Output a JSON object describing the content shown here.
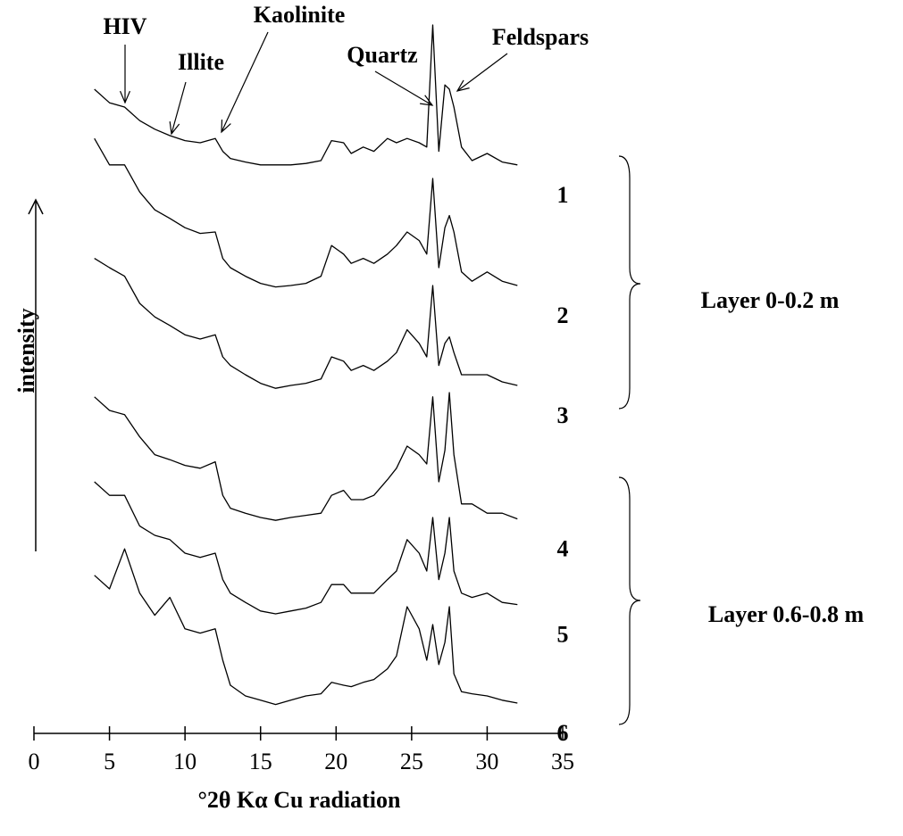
{
  "chart_data": {
    "type": "line",
    "x_label": "°2θ Kα Cu radiation",
    "y_label": "intensity",
    "xlim": [
      0,
      35
    ],
    "xticks": [
      0,
      5,
      10,
      15,
      20,
      25,
      30,
      35
    ],
    "ylim": [
      0,
      100
    ],
    "color": "#000000",
    "peak_labels": [
      "HIV",
      "Illite",
      "Kaolinite",
      "Quartz",
      "Feldspars"
    ],
    "groups": [
      "Layer 0-0.2 m",
      "Layer 0.6-0.8 m"
    ],
    "x": [
      4,
      5,
      6,
      7,
      8,
      9,
      10,
      11,
      12,
      12.5,
      13,
      14,
      15,
      16,
      17,
      18,
      19,
      19.7,
      20.5,
      21,
      21.8,
      22.5,
      23.4,
      24,
      24.7,
      25.5,
      26,
      26.4,
      26.8,
      27.2,
      27.5,
      27.8,
      28.3,
      29,
      30,
      31,
      32
    ],
    "series": [
      {
        "name": "1",
        "values": [
          87.5,
          85.6,
          85,
          83.1,
          81.9,
          81,
          80.3,
          80,
          80.6,
          78.8,
          77.8,
          77.3,
          76.9,
          76.9,
          76.9,
          77.1,
          77.5,
          80.3,
          80,
          78.5,
          79.4,
          78.8,
          80.6,
          80,
          80.6,
          80,
          79.4,
          96.5,
          78.8,
          88.1,
          87.5,
          85,
          79.4,
          77.5,
          78.5,
          77.3,
          76.9
        ]
      },
      {
        "name": "2",
        "values": [
          80.6,
          76.9,
          76.9,
          73.1,
          70.6,
          69.4,
          68.1,
          67.3,
          67.5,
          63.8,
          62.5,
          61.3,
          60.3,
          59.8,
          60,
          60.3,
          61.3,
          65.6,
          64.4,
          63.1,
          63.8,
          63.1,
          64.4,
          65.6,
          67.5,
          66.3,
          64.4,
          75,
          62.5,
          68.1,
          69.8,
          67.5,
          61.9,
          60.6,
          61.9,
          60.6,
          60
        ]
      },
      {
        "name": "3",
        "values": [
          63.8,
          62.5,
          61.3,
          57.5,
          55.6,
          54.4,
          53.1,
          52.5,
          53.1,
          50,
          48.8,
          47.5,
          46.3,
          45.6,
          46,
          46.3,
          46.9,
          50,
          49.4,
          48.1,
          48.8,
          48.1,
          49.4,
          50.6,
          53.8,
          51.9,
          50,
          60,
          48.8,
          51.9,
          52.8,
          50.6,
          47.5,
          47.5,
          47.5,
          46.5,
          46
        ]
      },
      {
        "name": "4",
        "values": [
          44.4,
          42.5,
          41.9,
          38.8,
          36.3,
          35.6,
          34.8,
          34.4,
          35.3,
          30.6,
          28.8,
          28.1,
          27.5,
          27.1,
          27.5,
          27.8,
          28.1,
          30.6,
          31.3,
          30,
          30,
          30.6,
          32.8,
          34.4,
          37.5,
          36.3,
          35,
          44.4,
          32.5,
          36.9,
          45,
          36.3,
          29.4,
          29.4,
          28.1,
          28.1,
          27.3
        ]
      },
      {
        "name": "5",
        "values": [
          32.5,
          30.6,
          30.6,
          26.3,
          25,
          24.4,
          22.5,
          21.9,
          22.5,
          18.8,
          16.9,
          15.6,
          14.4,
          14,
          14.4,
          14.8,
          15.6,
          18.1,
          18.1,
          16.9,
          16.9,
          16.9,
          18.8,
          20,
          24.4,
          22.5,
          20,
          27.5,
          18.8,
          22.5,
          27.5,
          20,
          16.9,
          16.3,
          16.9,
          15.6,
          15.3
        ]
      },
      {
        "name": "6",
        "values": [
          19.4,
          17.5,
          23.1,
          16.9,
          13.8,
          16.3,
          11.9,
          11.3,
          11.9,
          7.5,
          4,
          2.5,
          1.9,
          1.3,
          1.9,
          2.5,
          2.8,
          4.4,
          4,
          3.8,
          4.4,
          4.8,
          6.3,
          8.1,
          15,
          11.9,
          7.5,
          12.5,
          6.9,
          10,
          15,
          5.6,
          3.1,
          2.8,
          2.5,
          1.9,
          1.5
        ]
      }
    ]
  }
}
